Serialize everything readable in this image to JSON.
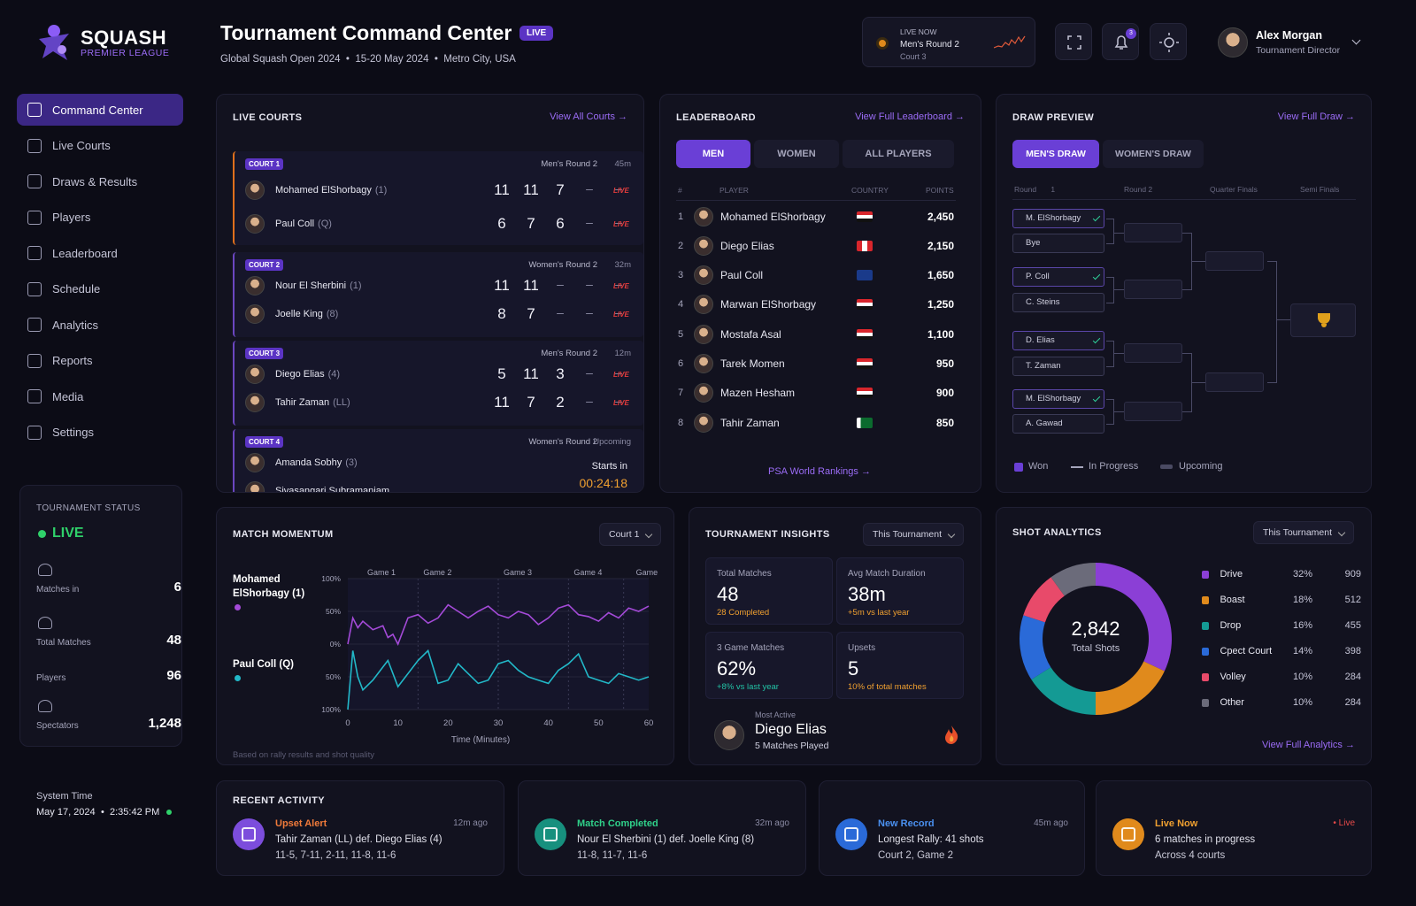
{
  "brand": {
    "name": "SQUASH",
    "sub": "PREMIER LEAGUE"
  },
  "header": {
    "title": "Tournament Command Center",
    "badge": "LIVE",
    "subtitle": "Global Squash Open 2024  •  15-20 May 2024  •  Metro City, USA"
  },
  "live_now": {
    "label": "LIVE NOW",
    "match": "Men's Round 2",
    "court": "Court 3"
  },
  "notifications": {
    "count": "3"
  },
  "user": {
    "name": "Alex Morgan",
    "role": "Tournament Director"
  },
  "nav": [
    {
      "label": "Command Center",
      "icon": "dashboard-icon"
    },
    {
      "label": "Live Courts",
      "icon": "court-icon"
    },
    {
      "label": "Draws & Results",
      "icon": "draw-icon"
    },
    {
      "label": "Players",
      "icon": "players-icon"
    },
    {
      "label": "Leaderboard",
      "icon": "leaderboard-icon"
    },
    {
      "label": "Schedule",
      "icon": "calendar-icon"
    },
    {
      "label": "Analytics",
      "icon": "analytics-icon"
    },
    {
      "label": "Reports",
      "icon": "reports-icon"
    },
    {
      "label": "Media",
      "icon": "media-icon"
    },
    {
      "label": "Settings",
      "icon": "settings-icon"
    }
  ],
  "status": {
    "title": "TOURNAMENT STATUS",
    "value": "LIVE",
    "stats": [
      {
        "label": "Matches in",
        "value": "6"
      },
      {
        "label": "Total Matches",
        "value": "48"
      },
      {
        "label": "Players",
        "value": "96"
      },
      {
        "label": "Spectators",
        "value": "1,248"
      }
    ]
  },
  "system": {
    "label": "System Time",
    "date": "May 17, 2024",
    "time": "2:35:42 PM"
  },
  "live_courts": {
    "title": "LIVE COURTS",
    "link": "View All Courts →",
    "live_label": "LIVE",
    "courts": [
      {
        "badge": "COURT 1",
        "round": "Men's Round 2",
        "time": "45m",
        "p1": "Mohamed ElShorbagy",
        "s1": "(1)",
        "p2": "Paul Coll",
        "s2": "(Q)",
        "g1": [
          "11",
          "11",
          "7",
          "–",
          "–"
        ],
        "g2": [
          "6",
          "7",
          "6",
          "–",
          "–"
        ]
      },
      {
        "badge": "COURT 2",
        "round": "Women's Round 2",
        "time": "32m",
        "p1": "Nour El Sherbini",
        "s1": "(1)",
        "p2": "Joelle King",
        "s2": "(8)",
        "g1": [
          "11",
          "11",
          "–",
          "–",
          "–"
        ],
        "g2": [
          "8",
          "7",
          "–",
          "–",
          "–"
        ]
      },
      {
        "badge": "COURT 3",
        "round": "Men's Round 2",
        "time": "12m",
        "p1": "Diego Elias",
        "s1": "(4)",
        "p2": "Tahir Zaman",
        "s2": "(LL)",
        "g1": [
          "5",
          "11",
          "3",
          "–",
          "–"
        ],
        "g2": [
          "11",
          "7",
          "2",
          "–",
          "–"
        ]
      },
      {
        "badge": "COURT 4",
        "round": "Women's Round 2",
        "time": "Upcoming",
        "p1": "Amanda Sobhy",
        "s1": "(3)",
        "p2": "Sivasangari Subramaniam",
        "s2": "",
        "starts": "Starts in",
        "countdown": "00:24:18"
      }
    ]
  },
  "leaderboard": {
    "title": "LEADERBOARD",
    "link": "View Full Leaderboard →",
    "tabs": [
      "MEN",
      "WOMEN",
      "ALL PLAYERS"
    ],
    "cols": [
      "#",
      "PLAYER",
      "COUNTRY",
      "POINTS"
    ],
    "rows": [
      {
        "rank": "1",
        "name": "Mohamed ElShorbagy",
        "flag": "egypt",
        "points": "2,450"
      },
      {
        "rank": "2",
        "name": "Diego Elias",
        "flag": "peru",
        "points": "2,150"
      },
      {
        "rank": "3",
        "name": "Paul Coll",
        "flag": "new-zealand",
        "points": "1,650"
      },
      {
        "rank": "4",
        "name": "Marwan ElShorbagy",
        "flag": "egypt",
        "points": "1,250"
      },
      {
        "rank": "5",
        "name": "Mostafa Asal",
        "flag": "egypt",
        "points": "1,100"
      },
      {
        "rank": "6",
        "name": "Tarek Momen",
        "flag": "egypt",
        "points": "950"
      },
      {
        "rank": "7",
        "name": "Mazen Hesham",
        "flag": "egypt",
        "points": "900"
      },
      {
        "rank": "8",
        "name": "Tahir Zaman",
        "flag": "pakistan",
        "points": "850"
      }
    ],
    "footer": "PSA World Rankings →"
  },
  "draw": {
    "title": "DRAW PREVIEW",
    "link": "View Full Draw →",
    "tabs": [
      "MEN'S DRAW",
      "WOMEN'S DRAW"
    ],
    "rounds": [
      "Round 1",
      "Round 2",
      "Quarter Finals",
      "Semi Finals"
    ],
    "r1": [
      {
        "n": "M. ElShorbagy",
        "w": true
      },
      {
        "n": "Bye",
        "w": false
      },
      {
        "n": "P. Coll",
        "w": true
      },
      {
        "n": "C. Steins",
        "w": false
      },
      {
        "n": "D. Elias",
        "w": true
      },
      {
        "n": "T. Zaman",
        "w": false
      },
      {
        "n": "M. ElShorbagy",
        "w": true
      },
      {
        "n": "A. Gawad",
        "w": false
      }
    ],
    "legend": [
      "Won",
      "In Progress",
      "Upcoming"
    ]
  },
  "momentum": {
    "title": "MATCH MOMENTUM",
    "select": "Court 1",
    "p1": "Mohamed ElShorbagy (1)",
    "p2": "Paul Coll (Q)",
    "note": "Based on rally results and shot quality"
  },
  "insights": {
    "title": "TOURNAMENT INSIGHTS",
    "select": "This Tournament",
    "cards": [
      {
        "label": "Total Matches",
        "value": "48",
        "sub": "28 Completed",
        "color": "#f0a030"
      },
      {
        "label": "Avg Match Duration",
        "value": "38m",
        "sub": "+5m vs last year",
        "color": "#f0a030"
      },
      {
        "label": "3 Game Matches",
        "value": "62%",
        "sub": "+8% vs last year",
        "color": "#22c3a6"
      },
      {
        "label": "Upsets",
        "value": "5",
        "sub": "10% of total matches",
        "color": "#f0a030"
      }
    ],
    "top_label": "Most Active",
    "top_name": "Diego Elias",
    "top_sub": "5 Matches Played"
  },
  "shots": {
    "title": "SHOT ANALYTICS",
    "select": "This Tournament",
    "total": "2,842",
    "total_label": "Total Shots",
    "link": "View Full Analytics →"
  },
  "activity": {
    "title": "RECENT ACTIVITY",
    "items": [
      {
        "title": "Upset Alert",
        "time": "12m ago",
        "l1": "Tahir Zaman (LL) def. Diego Elias (4)",
        "l2": "11-5, 7-11, 2-11, 11-8, 11-6",
        "color": "#7c4ddc",
        "tcolor": "#f07a3a"
      },
      {
        "title": "Match Completed",
        "time": "32m ago",
        "l1": "Nour El Sherbini (1) def. Joelle King (8)",
        "l2": "11-8, 11-7, 11-6",
        "color": "#17907e",
        "tcolor": "#2fd18a"
      },
      {
        "title": "New Record",
        "time": "45m ago",
        "l1": "Longest Rally: 41 shots",
        "l2": "Court 2, Game 2",
        "color": "#2a6ad8",
        "tcolor": "#4a90f0"
      },
      {
        "title": "Live Now",
        "time": "• Live",
        "l1": "6 matches in progress",
        "l2": "Across 4 courts",
        "color": "#e08a1c",
        "tcolor": "#f0a030"
      }
    ]
  },
  "chart_data": [
    {
      "type": "line",
      "title": "MATCH MOMENTUM",
      "xlabel": "Time (Minutes)",
      "x_ticks": [
        0,
        10,
        20,
        30,
        40,
        50,
        60
      ],
      "y_ticks": [
        "100%",
        "50%",
        "0%",
        "50%",
        "100%"
      ],
      "ylim": [
        -100,
        100
      ],
      "games": [
        "Game 1",
        "Game 2",
        "Game 3",
        "Game 4",
        "Game 5"
      ],
      "series": [
        {
          "name": "Mohamed ElShorbagy (1)",
          "color": "#a44ad8",
          "x": [
            0,
            1,
            2,
            3,
            5,
            7,
            8,
            9,
            10,
            12,
            14,
            16,
            18,
            20,
            22,
            24,
            26,
            28,
            30,
            32,
            34,
            36,
            38,
            40,
            42,
            44,
            46,
            48,
            50,
            52,
            54,
            56,
            58,
            60
          ],
          "y": [
            0,
            40,
            25,
            35,
            22,
            28,
            10,
            15,
            0,
            40,
            45,
            32,
            40,
            60,
            50,
            40,
            50,
            58,
            45,
            40,
            50,
            45,
            30,
            40,
            55,
            60,
            45,
            42,
            35,
            48,
            40,
            55,
            50,
            58
          ]
        },
        {
          "name": "Paul Coll (Q)",
          "color": "#22b8c8",
          "x": [
            0,
            1,
            2,
            3,
            5,
            7,
            8,
            10,
            12,
            14,
            16,
            18,
            20,
            22,
            24,
            26,
            28,
            30,
            32,
            34,
            36,
            38,
            40,
            42,
            44,
            46,
            48,
            50,
            52,
            54,
            56,
            58,
            60
          ],
          "y": [
            -100,
            -10,
            -50,
            -70,
            -55,
            -35,
            -25,
            -65,
            -45,
            -25,
            -10,
            -60,
            -55,
            -30,
            -45,
            -60,
            -55,
            -30,
            -25,
            -40,
            -50,
            -55,
            -60,
            -40,
            -30,
            -15,
            -50,
            -55,
            -60,
            -45,
            -50,
            -55,
            -50
          ]
        }
      ]
    },
    {
      "type": "pie",
      "title": "SHOT ANALYTICS",
      "total": "2,842",
      "categories": [
        "Drive",
        "Boast",
        "Drop",
        "Cpect Court",
        "Volley",
        "Other"
      ],
      "percent": [
        "32%",
        "18%",
        "16%",
        "14%",
        "10%",
        "10%"
      ],
      "values": [
        909,
        512,
        455,
        398,
        284,
        284
      ],
      "colors": [
        "#8b3fd6",
        "#e08a1c",
        "#149a94",
        "#2a6ad8",
        "#e84a6a",
        "#6b6b7a"
      ]
    }
  ]
}
